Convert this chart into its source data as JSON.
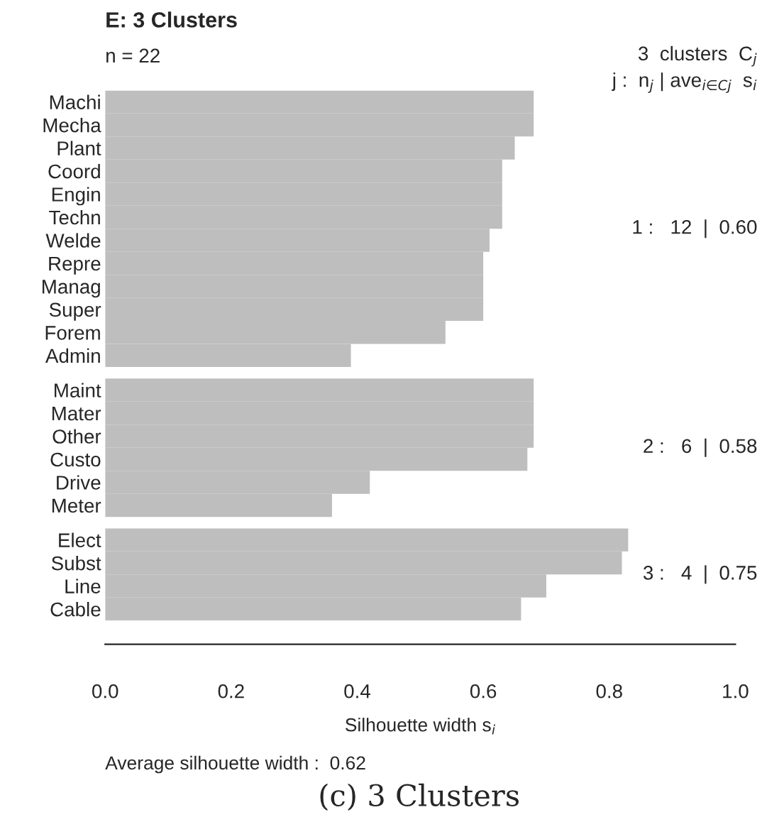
{
  "chart_data": {
    "type": "bar",
    "orientation": "horizontal",
    "title": "E: 3 Clusters",
    "xlabel": "Silhouette width s$_{i}$",
    "categories": [
      "Machi",
      "Mecha",
      "Plant",
      "Coord",
      "Engin",
      "Techn",
      "Welde",
      "Repre",
      "Manag",
      "Super",
      "Forem",
      "Admin",
      "Maint",
      "Mater",
      "Other",
      "Custo",
      "Drive",
      "Meter",
      "Elect",
      "Subst",
      "Line",
      "Cable"
    ],
    "series": [
      {
        "color": "#bebebe",
        "values": [
          0.68,
          0.68,
          0.65,
          0.63,
          0.63,
          0.63,
          0.61,
          0.6,
          0.6,
          0.6,
          0.54,
          0.39,
          null,
          null,
          null,
          null,
          null,
          null,
          null,
          null,
          null,
          null
        ]
      },
      {
        "color": "#bebebe",
        "values": [
          null,
          null,
          null,
          null,
          null,
          null,
          null,
          null,
          null,
          null,
          null,
          null,
          0.68,
          0.68,
          0.68,
          0.67,
          0.42,
          0.36,
          null,
          null,
          null,
          null
        ]
      },
      {
        "color": "#bebebe",
        "values": [
          null,
          null,
          null,
          null,
          null,
          null,
          null,
          null,
          null,
          null,
          null,
          null,
          null,
          null,
          null,
          null,
          null,
          null,
          0.83,
          0.82,
          0.7,
          0.66
        ]
      }
    ],
    "xlim": [
      0,
      1
    ],
    "xticks": [
      {
        "value": 0,
        "label": "0.0"
      },
      {
        "value": 0.2,
        "label": "0.2"
      },
      {
        "value": 0.4,
        "label": "0.4"
      },
      {
        "value": 0.6,
        "label": "0.6"
      },
      {
        "value": 0.8,
        "label": "0.8"
      },
      {
        "value": 1,
        "label": "1.0"
      }
    ],
    "annotations": [
      "n = 22",
      "3  clusters  C$_{j}$",
      "j :  n$_{j}$ | ave$_{i∈Cj}$  s$_{i}$",
      "1 :   12  |  0.60",
      "2 :   6  |  0.58",
      "3 :   4  |  0.75",
      "Average silhouette width :  0.62",
      "(c) 3 Clusters"
    ]
  }
}
